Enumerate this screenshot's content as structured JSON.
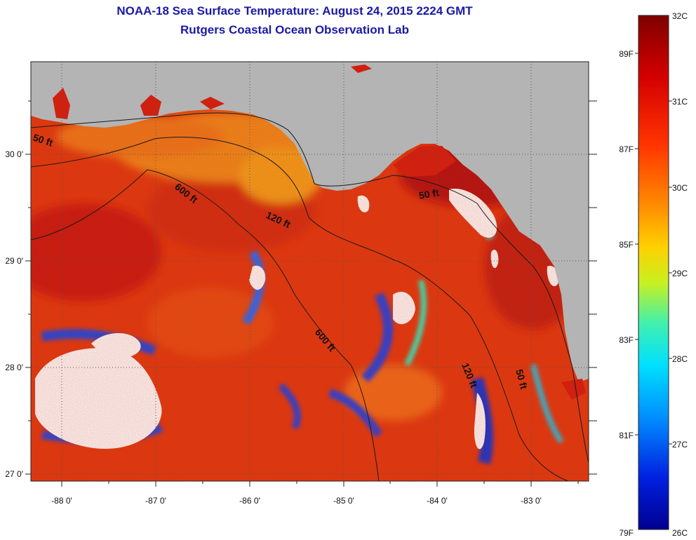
{
  "title": {
    "line1": "NOAA-18 Sea Surface Temperature:  August 24, 2015 2224 GMT",
    "line2": "Rutgers Coastal Ocean Observation Lab"
  },
  "axes": {
    "lon_labels": [
      "-88 0'",
      "-87 0'",
      "-86 0'",
      "-85 0'",
      "-84 0'",
      "-83 0'"
    ],
    "lat_labels": [
      "30 0'",
      "29 0'",
      "28 0'",
      "27 0'"
    ]
  },
  "contours": {
    "c50_west": "50 ft",
    "c50_east": "50 ft",
    "c50_se": "50 ft",
    "c120_north": "120 ft",
    "c120_south": "120 ft",
    "c600_north": "600 ft",
    "c600_south": "600 ft"
  },
  "colorbar": {
    "celsius": [
      "32C",
      "31C",
      "30C",
      "29C",
      "28C",
      "27C",
      "26C"
    ],
    "fahrenheit": [
      "89F",
      "87F",
      "85F",
      "83F",
      "81F",
      "79F"
    ]
  },
  "colors": {
    "land": "#b4b4b4",
    "cloud": "#ffffff",
    "warm": "#e23a0c",
    "title": "#1a1aa6"
  }
}
